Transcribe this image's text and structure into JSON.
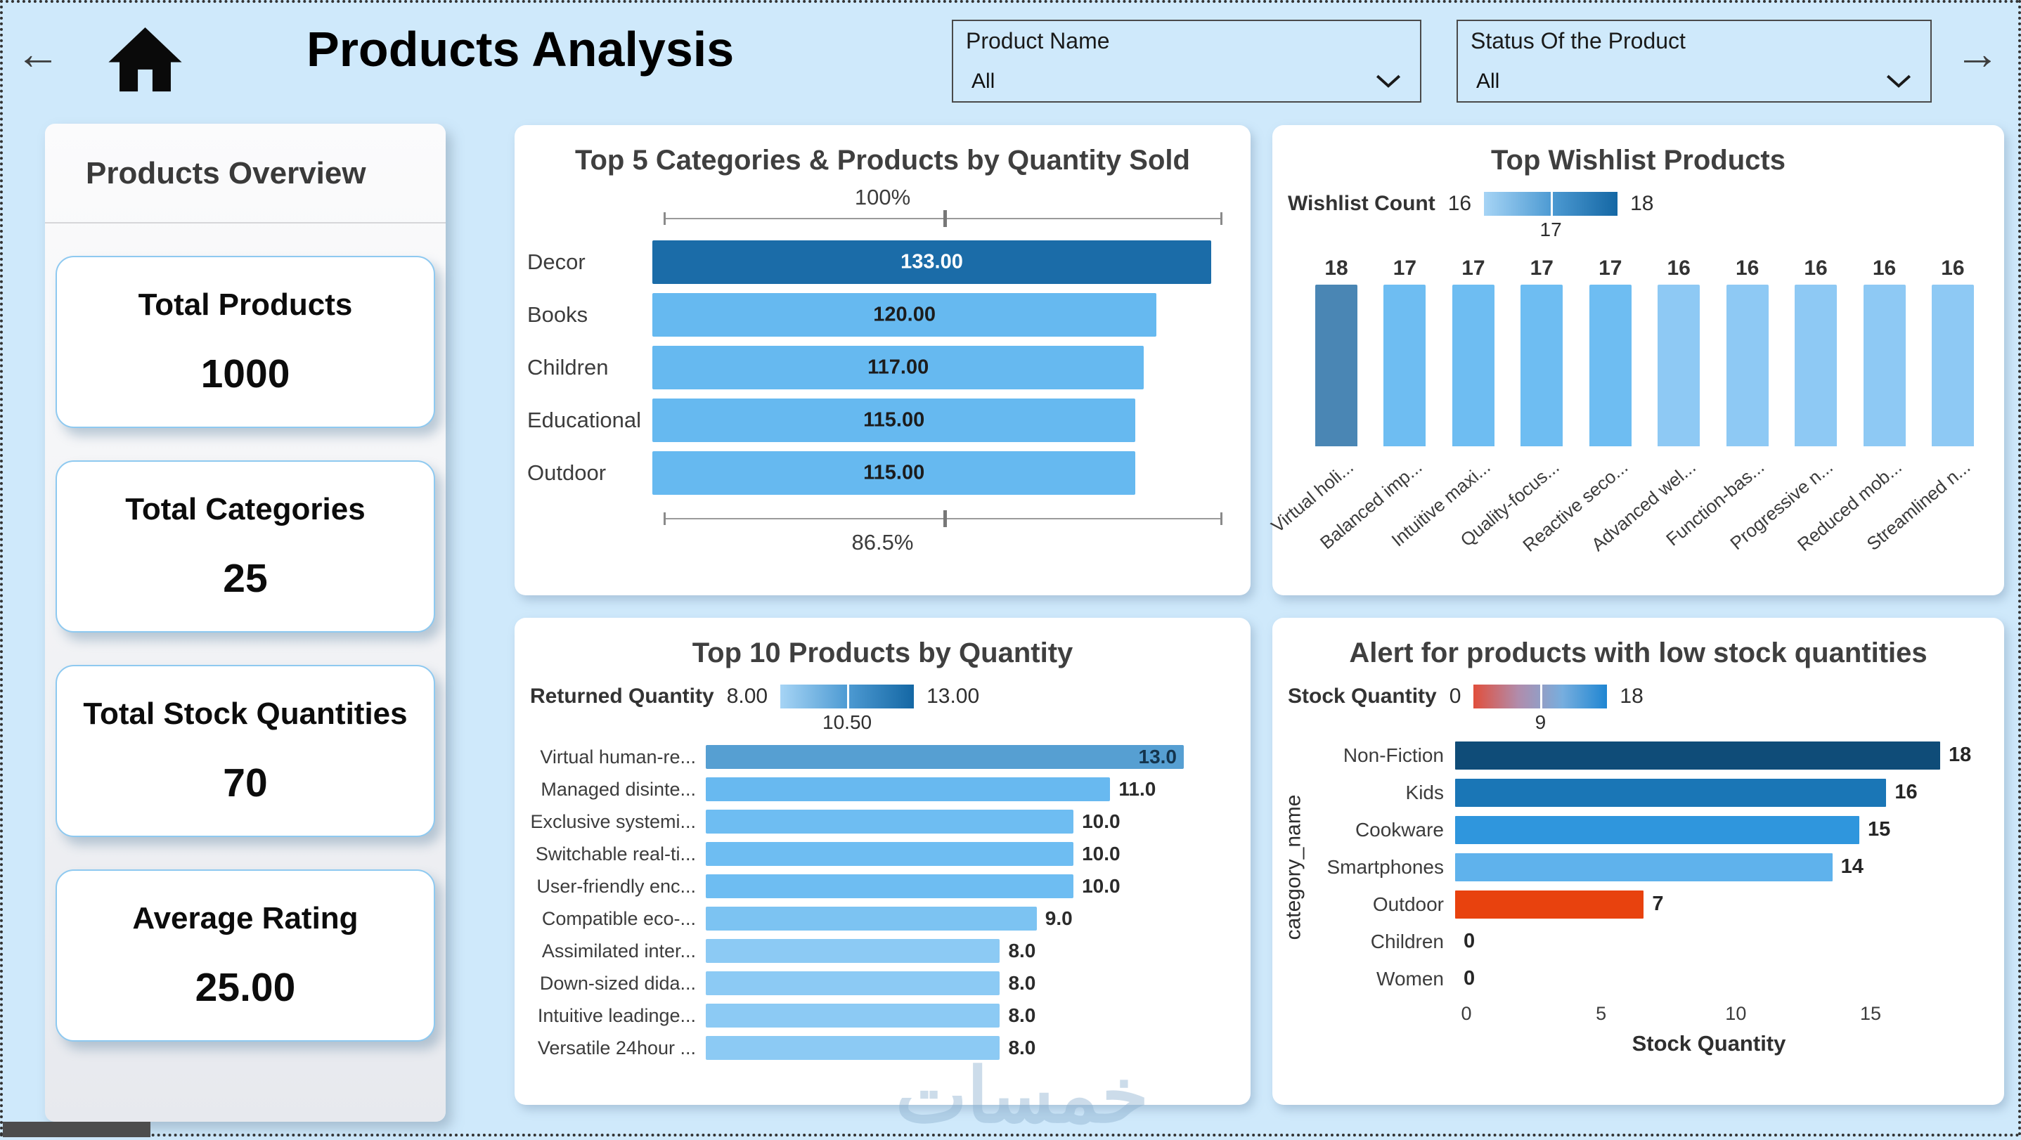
{
  "header": {
    "title": "Products Analysis",
    "back_arrow": "←",
    "forward_arrow": "→",
    "filters": [
      {
        "label": "Product Name",
        "value": "All"
      },
      {
        "label": "Status Of the Product",
        "value": "All"
      }
    ]
  },
  "sidebar": {
    "title": "Products Overview",
    "kpis": [
      {
        "label": "Total Products",
        "value": "1000"
      },
      {
        "label": "Total Categories",
        "value": "25"
      },
      {
        "label": "Total Stock Quantities",
        "value": "70"
      },
      {
        "label": "Average Rating",
        "value": "25.00"
      }
    ]
  },
  "chart_data": [
    {
      "type": "bar",
      "orientation": "horizontal",
      "title": "Top 5 Categories & Products by Quantity Sold",
      "categories": [
        "Decor",
        "Books",
        "Children",
        "Educational",
        "Outdoor"
      ],
      "values": [
        133,
        120,
        117,
        115,
        115
      ],
      "value_labels": [
        "133.00",
        "120.00",
        "117.00",
        "115.00",
        "115.00"
      ],
      "colors": [
        "#1b6ca8",
        "#66b9f0",
        "#66b9f0",
        "#66b9f0",
        "#66b9f0"
      ],
      "slider_top": "100%",
      "slider_bottom": "86.5%",
      "xlim": [
        0,
        133
      ]
    },
    {
      "type": "bar",
      "orientation": "vertical",
      "title": "Top Wishlist Products",
      "legend": {
        "label": "Wishlist Count",
        "min": "16",
        "mid": "17",
        "max": "18",
        "gradient": [
          "#a6d4f5",
          "#4e9bd3",
          "#1467a4"
        ]
      },
      "categories": [
        "Virtual holi...",
        "Balanced imp...",
        "Intuitive maxi...",
        "Quality-focus...",
        "Reactive seco...",
        "Advanced wel...",
        "Function-bas...",
        "Progressive n...",
        "Reduced mob...",
        "Streamlined n..."
      ],
      "values": [
        18,
        17,
        17,
        17,
        17,
        16,
        16,
        16,
        16,
        16
      ],
      "colors": [
        "#4a86b4",
        "#6ebdf2",
        "#6ebdf2",
        "#6ebdf2",
        "#6ebdf2",
        "#8ec9f4",
        "#8ec9f4",
        "#8ec9f4",
        "#8ec9f4",
        "#8ec9f4"
      ],
      "ylim": [
        0,
        18
      ]
    },
    {
      "type": "bar",
      "orientation": "horizontal",
      "title": "Top 10 Products by Quantity",
      "legend": {
        "label": "Returned Quantity",
        "min": "8.00",
        "mid": "10.50",
        "max": "13.00",
        "gradient": [
          "#a6d4f5",
          "#4e9bd3",
          "#1467a4"
        ]
      },
      "categories": [
        "Virtual human-re...",
        "Managed disinte...",
        "Exclusive systemi...",
        "Switchable real-ti...",
        "User-friendly enc...",
        "Compatible eco-...",
        "Assimilated inter...",
        "Down-sized dida...",
        "Intuitive leadinge...",
        "Versatile 24hour ..."
      ],
      "values": [
        13,
        11,
        10,
        10,
        10,
        9,
        8,
        8,
        8,
        8
      ],
      "value_labels": [
        "13.0",
        "11.0",
        "10.0",
        "10.0",
        "10.0",
        "9.0",
        "8.0",
        "8.0",
        "8.0",
        "8.0"
      ],
      "colors": [
        "#569fd2",
        "#68b9f0",
        "#6ebdf2",
        "#6ebdf2",
        "#6ebdf2",
        "#7cc3f2",
        "#8ccaf4",
        "#8ccaf4",
        "#8ccaf4",
        "#8ccaf4"
      ],
      "xlim": [
        0,
        13
      ]
    },
    {
      "type": "bar",
      "orientation": "horizontal",
      "title": "Alert for products with low stock quantities",
      "legend": {
        "label": "Stock Quantity",
        "min": "0",
        "mid": "9",
        "max": "18",
        "gradient": [
          "#e14f3c",
          "#b18cab",
          "#77aede",
          "#1f86d2"
        ]
      },
      "ylabel": "category_name",
      "xlabel": "Stock Quantity",
      "categories": [
        "Non-Fiction",
        "Kids",
        "Cookware",
        "Smartphones",
        "Outdoor",
        "Children",
        "Women"
      ],
      "values": [
        18,
        16,
        15,
        14,
        7,
        0,
        0
      ],
      "colors": [
        "#0f4c78",
        "#1a76b6",
        "#2f96dd",
        "#5fb2ec",
        "#e8420e",
        "#5fb2ec",
        "#5fb2ec"
      ],
      "x_ticks": [
        "0",
        "5",
        "10",
        "15"
      ],
      "xlim": [
        0,
        18
      ]
    }
  ],
  "watermark": "خمسات",
  "colors": {
    "page_bg": "#cfe9fb",
    "card_bg": "#ffffff",
    "accent_blue": "#66b9f0",
    "dark_blue": "#1b6ca8",
    "alert_red": "#e8420e"
  }
}
